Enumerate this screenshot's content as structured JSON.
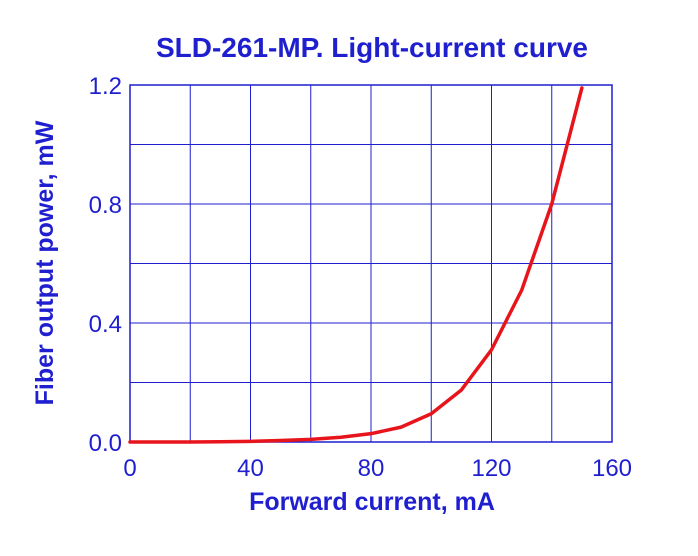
{
  "chart_data": {
    "type": "line",
    "title": "SLD-261-MP. Light-current curve",
    "xlabel": "Forward current, mA",
    "ylabel": "Fiber output power, mW",
    "xlim": [
      0,
      160
    ],
    "ylim": [
      0,
      1.2
    ],
    "x_ticks": [
      "0",
      "40",
      "80",
      "120",
      "160"
    ],
    "y_ticks": [
      "0.0",
      "0.4",
      "0.8",
      "1.2"
    ],
    "x_grid_step": 20,
    "y_grid_step": 0.2,
    "grid": true,
    "series": [
      {
        "color": "#e8141c",
        "x": [
          0,
          10,
          20,
          30,
          40,
          50,
          60,
          70,
          80,
          90,
          100,
          110,
          120,
          130,
          140,
          150
        ],
        "y": [
          0.0,
          0.0,
          0.0,
          0.001,
          0.002,
          0.005,
          0.009,
          0.016,
          0.028,
          0.05,
          0.095,
          0.175,
          0.31,
          0.51,
          0.8,
          1.19
        ]
      }
    ],
    "colors": {
      "text": "#1f1fd0",
      "grid": "#1f1fd0",
      "axis": "#1f1fd0",
      "line": "#e8141c"
    }
  }
}
